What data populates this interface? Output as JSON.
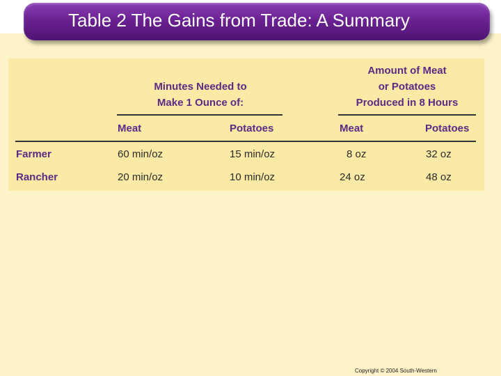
{
  "slide": {
    "title": "Table 2 The Gains from Trade: A Summary",
    "copyright": "Copyright © 2004 South-Western"
  },
  "table": {
    "group_headers": {
      "minutes": [
        "Minutes Needed to",
        "Make 1 Ounce of:"
      ],
      "amount": [
        "Amount of Meat",
        "or Potatoes",
        "Produced in 8 Hours"
      ]
    },
    "column_headers": [
      "Meat",
      "Potatoes",
      "Meat",
      "Potatoes"
    ],
    "rows": [
      {
        "label": "Farmer",
        "cells": [
          "60 min/oz",
          "15 min/oz",
          "8 oz",
          "32 oz"
        ]
      },
      {
        "label": "Rancher",
        "cells": [
          "20 min/oz",
          "10 min/oz",
          "24 oz",
          "48 oz"
        ]
      }
    ]
  },
  "colors": {
    "title_bar": "#6a2191",
    "header_text": "#5a2a86",
    "table_bg": "#fbe9a6",
    "page_bg": "#fdf3c9"
  }
}
